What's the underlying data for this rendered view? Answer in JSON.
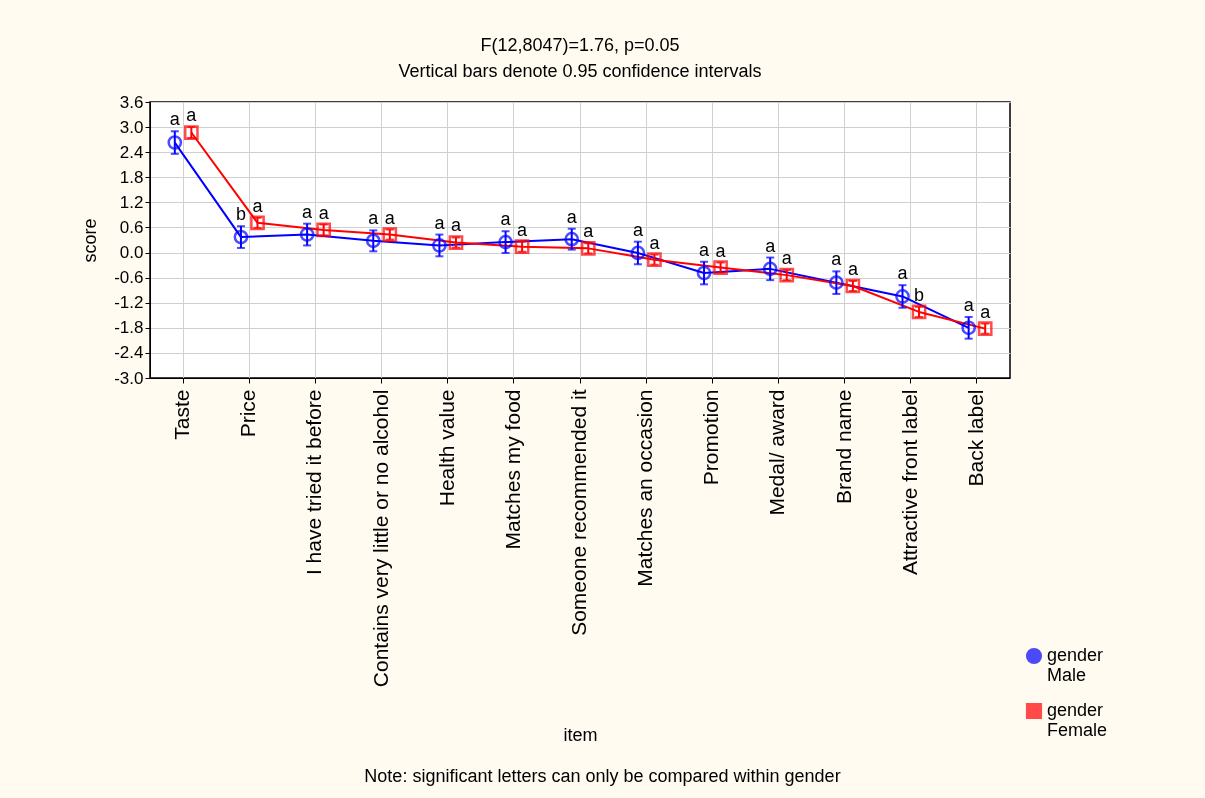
{
  "chart_data": {
    "type": "line",
    "title": "F(12,8047)=1.76, p=0.05",
    "subtitle": "Vertical bars denote 0.95 confidence intervals",
    "xlabel": "item",
    "ylabel": "score",
    "categories": [
      "Taste",
      "Price",
      "I have tried it before",
      "Contains very little or no alcohol",
      "Health value",
      "Matches my food",
      "Someone recommended it",
      "Matches an occasion",
      "Promotion",
      "Medal/ award",
      "Brand name",
      "Attractive front label",
      "Back label"
    ],
    "series": [
      {
        "name": "gender Male",
        "color": "#0000ff",
        "marker": "circle",
        "values": [
          2.63,
          0.37,
          0.43,
          0.28,
          0.17,
          0.25,
          0.32,
          -0.01,
          -0.49,
          -0.39,
          -0.72,
          -1.05,
          -1.8
        ],
        "errors": [
          0.27,
          0.26,
          0.26,
          0.25,
          0.26,
          0.26,
          0.25,
          0.27,
          0.27,
          0.27,
          0.27,
          0.27,
          0.26
        ],
        "value_labels": [
          "a",
          "b",
          "a",
          "a",
          "a",
          "a",
          "a",
          "a",
          "a",
          "a",
          "a",
          "a",
          "a"
        ]
      },
      {
        "name": "gender Female",
        "color": "#ff0000",
        "marker": "square",
        "values": [
          2.87,
          0.71,
          0.54,
          0.43,
          0.24,
          0.14,
          0.1,
          -0.17,
          -0.36,
          -0.54,
          -0.8,
          -1.42,
          -1.82
        ],
        "errors": [
          0.13,
          0.12,
          0.13,
          0.12,
          0.12,
          0.12,
          0.12,
          0.12,
          0.12,
          0.12,
          0.12,
          0.12,
          0.12
        ],
        "value_labels": [
          "a",
          "a",
          "a",
          "a",
          "a",
          "a",
          "a",
          "a",
          "a",
          "a",
          "a",
          "b",
          "a"
        ]
      }
    ],
    "ylim": [
      -3.0,
      3.6
    ],
    "yticks": [
      {
        "value": 3.6,
        "label": "3.6"
      },
      {
        "value": 3.0,
        "label": "3.0"
      },
      {
        "value": 2.4,
        "label": "2.4"
      },
      {
        "value": 1.8,
        "label": "1.8"
      },
      {
        "value": 1.2,
        "label": "1.2"
      },
      {
        "value": 0.6,
        "label": "0.6"
      },
      {
        "value": 0.0,
        "label": "0.0"
      },
      {
        "value": -0.6,
        "label": "-0.6"
      },
      {
        "value": -1.2,
        "label": "-1.2"
      },
      {
        "value": -1.8,
        "label": "-1.8"
      },
      {
        "value": -2.4,
        "label": "-2.4"
      },
      {
        "value": -3.0,
        "label": "-3.0"
      }
    ],
    "grid": true,
    "legend": "bottom right",
    "line_style": "solid",
    "annotations": [
      "Note: significant letters can only be compared within gender"
    ]
  }
}
